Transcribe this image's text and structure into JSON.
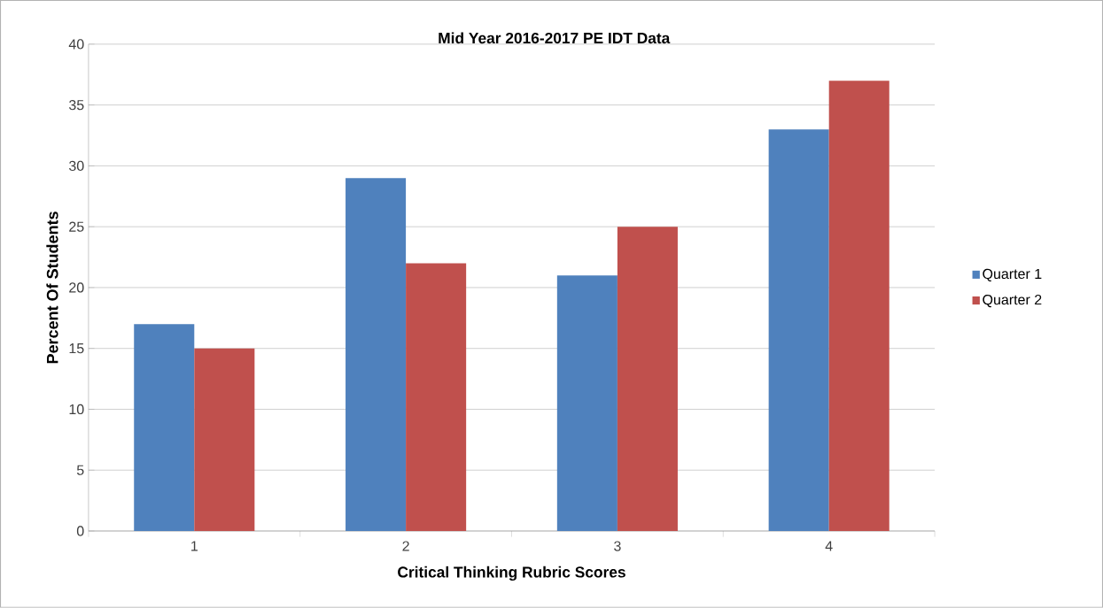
{
  "chart_data": {
    "type": "bar",
    "title": "Mid Year 2016-2017  PE IDT Data",
    "xlabel": "Critical Thinking Rubric Scores",
    "ylabel": "Percent Of Students",
    "categories": [
      "1",
      "2",
      "3",
      "4"
    ],
    "series": [
      {
        "name": "Quarter 1",
        "color": "#4f81bd",
        "values": [
          17,
          29,
          21,
          33
        ]
      },
      {
        "name": "Quarter 2",
        "color": "#c0504d",
        "values": [
          15,
          22,
          25,
          37
        ]
      }
    ],
    "ylim": [
      0,
      40
    ],
    "yticks": [
      0,
      5,
      10,
      15,
      20,
      25,
      30,
      35,
      40
    ],
    "grid": "y",
    "legend": "right"
  }
}
